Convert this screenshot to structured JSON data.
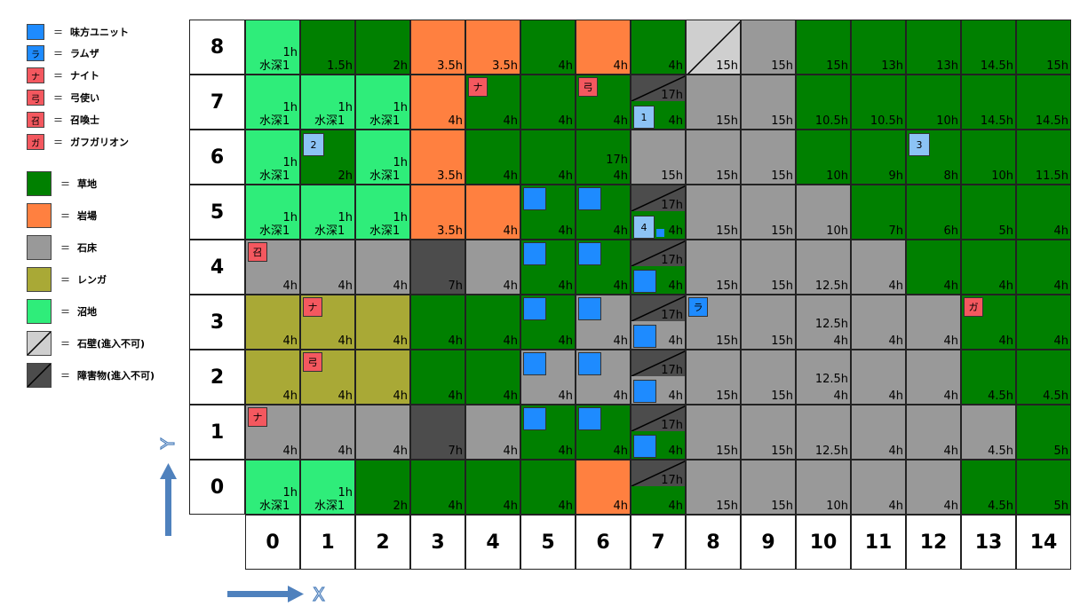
{
  "legend": [
    {
      "kind": "unit",
      "label": "味方ユニット",
      "color": "#1e8bff",
      "glyph": ""
    },
    {
      "kind": "unit",
      "label": "ラムザ",
      "color": "#1e8bff",
      "glyph": "ラ"
    },
    {
      "kind": "unit",
      "label": "ナイト",
      "color": "#f4585f",
      "glyph": "ナ"
    },
    {
      "kind": "unit",
      "label": "弓使い",
      "color": "#f4585f",
      "glyph": "弓"
    },
    {
      "kind": "unit",
      "label": "召喚士",
      "color": "#f4585f",
      "glyph": "召"
    },
    {
      "kind": "unit",
      "label": "ガフガリオン",
      "color": "#f4585f",
      "glyph": "ガ"
    },
    {
      "kind": "terrain",
      "label": "草地",
      "terrain": "G"
    },
    {
      "kind": "terrain",
      "label": "岩場",
      "terrain": "R"
    },
    {
      "kind": "terrain",
      "label": "石床",
      "terrain": "S"
    },
    {
      "kind": "terrain",
      "label": "レンガ",
      "terrain": "B"
    },
    {
      "kind": "terrain",
      "label": "沼地",
      "terrain": "M"
    },
    {
      "kind": "terrain",
      "label": "石壁(進入不可)",
      "terrain": "W"
    },
    {
      "kind": "terrain",
      "label": "障害物(進入不可)",
      "terrain": "O"
    }
  ],
  "legend_eq": "＝",
  "colors": {
    "G": "#008000",
    "R": "#ff8040",
    "S": "#999999",
    "B": "#a9a936",
    "M": "#2fed7a",
    "W": "#cfcfcf",
    "O": "#4c4c4c",
    "ally": "#1e8bff",
    "allyLight": "#8cc3f5",
    "enemy": "#f4585f",
    "arrow": "#4f81bd"
  },
  "axes": {
    "x_label": "X",
    "y_label": "Y",
    "cols": [
      "0",
      "1",
      "2",
      "3",
      "4",
      "5",
      "6",
      "7",
      "8",
      "9",
      "10",
      "11",
      "12",
      "13",
      "14"
    ],
    "rows": [
      "8",
      "7",
      "6",
      "5",
      "4",
      "3",
      "2",
      "1",
      "0"
    ]
  },
  "grid": [
    {
      "row": "8",
      "cells": [
        {
          "t": "M",
          "c": "1h",
          "d": "水深1"
        },
        {
          "t": "G",
          "c": "1.5h"
        },
        {
          "t": "G",
          "c": "2h"
        },
        {
          "t": "R",
          "c": "3.5h"
        },
        {
          "t": "R",
          "c": "3.5h"
        },
        {
          "t": "G",
          "c": "4h"
        },
        {
          "t": "R",
          "c": "4h"
        },
        {
          "t": "G",
          "c": "4h"
        },
        {
          "t": "W",
          "c": "15h"
        },
        {
          "t": "S",
          "c": "15h"
        },
        {
          "t": "G",
          "c": "15h"
        },
        {
          "t": "G",
          "c": "13h"
        },
        {
          "t": "G",
          "c": "13h"
        },
        {
          "t": "G",
          "c": "14.5h"
        },
        {
          "t": "G",
          "c": "15h"
        }
      ]
    },
    {
      "row": "7",
      "cells": [
        {
          "t": "M",
          "c": "1h",
          "d": "水深1"
        },
        {
          "t": "M",
          "c": "1h",
          "d": "水深1"
        },
        {
          "t": "M",
          "c": "1h",
          "d": "水深1"
        },
        {
          "t": "R",
          "c": "4h"
        },
        {
          "t": "G",
          "c": "4h",
          "u": "ナ"
        },
        {
          "t": "G",
          "c": "4h"
        },
        {
          "t": "G",
          "c": "4h",
          "u": "弓"
        },
        {
          "t": "G",
          "c": "4h",
          "ob": "17h",
          "a": "1"
        },
        {
          "t": "S",
          "c": "15h"
        },
        {
          "t": "S",
          "c": "15h"
        },
        {
          "t": "G",
          "c": "10.5h"
        },
        {
          "t": "G",
          "c": "10.5h"
        },
        {
          "t": "G",
          "c": "10h"
        },
        {
          "t": "G",
          "c": "14.5h"
        },
        {
          "t": "G",
          "c": "14.5h"
        }
      ]
    },
    {
      "row": "6",
      "cells": [
        {
          "t": "M",
          "c": "1h",
          "d": "水深1"
        },
        {
          "t": "G",
          "c": "2h",
          "a": "2"
        },
        {
          "t": "M",
          "c": "1h",
          "d": "水深1"
        },
        {
          "t": "R",
          "c": "3.5h"
        },
        {
          "t": "G",
          "c": "4h"
        },
        {
          "t": "G",
          "c": "4h"
        },
        {
          "t": "G",
          "c": "4h",
          "top": "17h"
        },
        {
          "t": "S",
          "c": "15h"
        },
        {
          "t": "S",
          "c": "15h"
        },
        {
          "t": "S",
          "c": "15h"
        },
        {
          "t": "G",
          "c": "10h"
        },
        {
          "t": "G",
          "c": "9h"
        },
        {
          "t": "G",
          "c": "8h",
          "a": "3"
        },
        {
          "t": "G",
          "c": "10h"
        },
        {
          "t": "G",
          "c": "11.5h"
        }
      ]
    },
    {
      "row": "5",
      "cells": [
        {
          "t": "M",
          "c": "1h",
          "d": "水深1"
        },
        {
          "t": "M",
          "c": "1h",
          "d": "水深1"
        },
        {
          "t": "M",
          "c": "1h",
          "d": "水深1"
        },
        {
          "t": "R",
          "c": "3.5h"
        },
        {
          "t": "R",
          "c": "4h"
        },
        {
          "t": "G",
          "c": "4h",
          "b": true
        },
        {
          "t": "G",
          "c": "4h",
          "b": true
        },
        {
          "t": "G",
          "c": "4h",
          "ob": "17h",
          "a": "4",
          "sq": true
        },
        {
          "t": "S",
          "c": "15h"
        },
        {
          "t": "S",
          "c": "15h"
        },
        {
          "t": "S",
          "c": "10h"
        },
        {
          "t": "G",
          "c": "7h"
        },
        {
          "t": "G",
          "c": "6h"
        },
        {
          "t": "G",
          "c": "5h"
        },
        {
          "t": "G",
          "c": "4h"
        }
      ]
    },
    {
      "row": "4",
      "cells": [
        {
          "t": "S",
          "c": "4h",
          "u": "召"
        },
        {
          "t": "S",
          "c": "4h"
        },
        {
          "t": "S",
          "c": "4h"
        },
        {
          "t": "O",
          "c": "7h"
        },
        {
          "t": "S",
          "c": "4h"
        },
        {
          "t": "G",
          "c": "4h",
          "b": true
        },
        {
          "t": "G",
          "c": "4h",
          "b": true
        },
        {
          "t": "G",
          "c": "4h",
          "ob": "17h",
          "bl": true
        },
        {
          "t": "S",
          "c": "15h"
        },
        {
          "t": "S",
          "c": "15h"
        },
        {
          "t": "S",
          "c": "12.5h"
        },
        {
          "t": "S",
          "c": "4h"
        },
        {
          "t": "G",
          "c": "4h"
        },
        {
          "t": "G",
          "c": "4h"
        },
        {
          "t": "G",
          "c": "4h"
        }
      ]
    },
    {
      "row": "3",
      "cells": [
        {
          "t": "B",
          "c": "4h"
        },
        {
          "t": "B",
          "c": "4h",
          "u": "ナ"
        },
        {
          "t": "B",
          "c": "4h"
        },
        {
          "t": "G",
          "c": "4h"
        },
        {
          "t": "G",
          "c": "4h"
        },
        {
          "t": "G",
          "c": "4h",
          "b": true
        },
        {
          "t": "S",
          "c": "4h",
          "b": true
        },
        {
          "t": "S",
          "c": "4h",
          "ob": "17h",
          "bl": true
        },
        {
          "t": "S",
          "c": "15h",
          "ra": "ラ"
        },
        {
          "t": "S",
          "c": "15h"
        },
        {
          "t": "S",
          "c": "4h",
          "mid": "12.5h"
        },
        {
          "t": "S",
          "c": "4h"
        },
        {
          "t": "S",
          "c": "4h"
        },
        {
          "t": "G",
          "c": "4h",
          "u": "ガ"
        },
        {
          "t": "G",
          "c": "4h"
        }
      ]
    },
    {
      "row": "2",
      "cells": [
        {
          "t": "B",
          "c": "4h"
        },
        {
          "t": "B",
          "c": "4h",
          "u": "弓"
        },
        {
          "t": "B",
          "c": "4h"
        },
        {
          "t": "G",
          "c": "4h"
        },
        {
          "t": "G",
          "c": "4h"
        },
        {
          "t": "S",
          "c": "4h",
          "b": true
        },
        {
          "t": "S",
          "c": "4h",
          "b": true
        },
        {
          "t": "S",
          "c": "4h",
          "ob": "17h",
          "bl": true
        },
        {
          "t": "S",
          "c": "15h"
        },
        {
          "t": "S",
          "c": "15h"
        },
        {
          "t": "S",
          "c": "4h",
          "mid": "12.5h"
        },
        {
          "t": "S",
          "c": "4h"
        },
        {
          "t": "S",
          "c": "4h"
        },
        {
          "t": "G",
          "c": "4.5h"
        },
        {
          "t": "G",
          "c": "4.5h"
        }
      ]
    },
    {
      "row": "1",
      "cells": [
        {
          "t": "S",
          "c": "4h",
          "u": "ナ"
        },
        {
          "t": "S",
          "c": "4h"
        },
        {
          "t": "S",
          "c": "4h"
        },
        {
          "t": "O",
          "c": "7h"
        },
        {
          "t": "S",
          "c": "4h"
        },
        {
          "t": "G",
          "c": "4h",
          "b": true
        },
        {
          "t": "G",
          "c": "4h",
          "b": true
        },
        {
          "t": "G",
          "c": "4h",
          "ob": "17h",
          "bl": true
        },
        {
          "t": "S",
          "c": "15h"
        },
        {
          "t": "S",
          "c": "15h"
        },
        {
          "t": "S",
          "c": "12.5h"
        },
        {
          "t": "S",
          "c": "4h"
        },
        {
          "t": "S",
          "c": "4h"
        },
        {
          "t": "S",
          "c": "4.5h"
        },
        {
          "t": "G",
          "c": "5h"
        }
      ]
    },
    {
      "row": "0",
      "cells": [
        {
          "t": "M",
          "c": "1h",
          "d": "水深1"
        },
        {
          "t": "M",
          "c": "1h",
          "d": "水深1"
        },
        {
          "t": "G",
          "c": "2h"
        },
        {
          "t": "G",
          "c": "4h"
        },
        {
          "t": "G",
          "c": "4h"
        },
        {
          "t": "G",
          "c": "4h"
        },
        {
          "t": "R",
          "c": "4h"
        },
        {
          "t": "G",
          "c": "4h",
          "ob": "17h"
        },
        {
          "t": "S",
          "c": "15h"
        },
        {
          "t": "S",
          "c": "15h"
        },
        {
          "t": "S",
          "c": "10h"
        },
        {
          "t": "S",
          "c": "4h"
        },
        {
          "t": "S",
          "c": "4h"
        },
        {
          "t": "G",
          "c": "4.5h"
        },
        {
          "t": "G",
          "c": "5h"
        }
      ]
    }
  ]
}
